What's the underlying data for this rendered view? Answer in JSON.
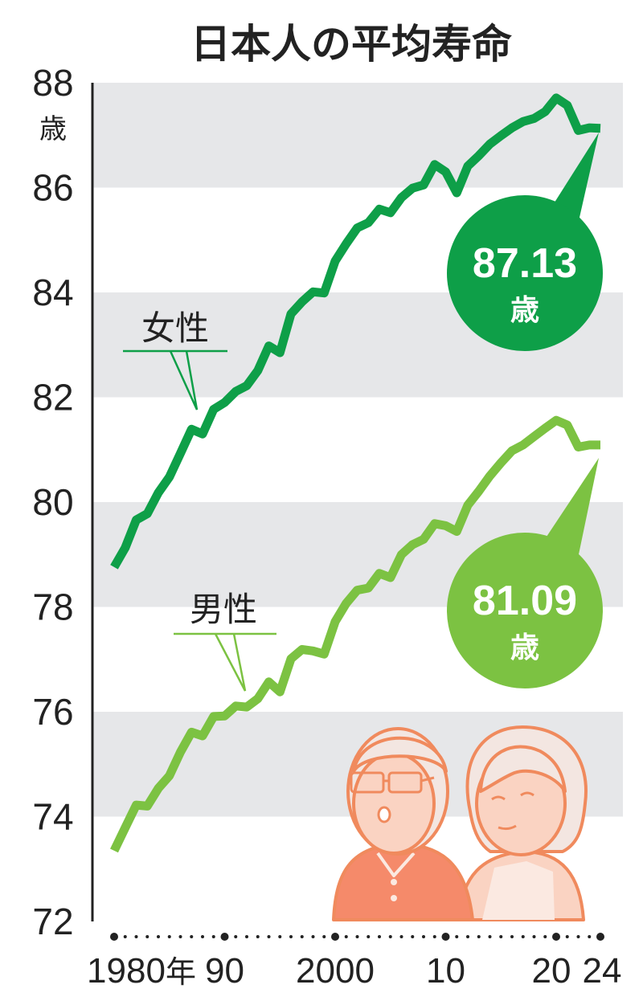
{
  "title": "日本人の平均寿命",
  "colors": {
    "female": "#0e9f48",
    "male": "#7cc242",
    "band": "#e6e7e9",
    "illustration": "#f08a5d",
    "skin": "#fad3c2",
    "shirt": "#f58a6a",
    "hair": "#f3e6e1"
  },
  "chart_data": {
    "type": "line",
    "title": "日本人の平均寿命",
    "yunit": "歳",
    "ylim": [
      72,
      88
    ],
    "yticks": [
      "72",
      "74",
      "76",
      "78",
      "80",
      "82",
      "84",
      "86",
      "88"
    ],
    "xlim": [
      1980,
      2024
    ],
    "xtick_labels": [
      {
        "x": 1980,
        "label": "1980年"
      },
      {
        "x": 1990,
        "label": "90"
      },
      {
        "x": 2000,
        "label": "2000"
      },
      {
        "x": 2010,
        "label": "10"
      },
      {
        "x": 2020,
        "label": "20"
      },
      {
        "x": 2024,
        "label": "24"
      }
    ],
    "x": [
      1980,
      1981,
      1982,
      1983,
      1984,
      1985,
      1986,
      1987,
      1988,
      1989,
      1990,
      1991,
      1992,
      1993,
      1994,
      1995,
      1996,
      1997,
      1998,
      1999,
      2000,
      2001,
      2002,
      2003,
      2004,
      2005,
      2006,
      2007,
      2008,
      2009,
      2010,
      2011,
      2012,
      2013,
      2014,
      2015,
      2016,
      2017,
      2018,
      2019,
      2020,
      2021,
      2022,
      2023,
      2024
    ],
    "series": [
      {
        "name": "女性",
        "color_key": "female",
        "values": [
          78.76,
          79.13,
          79.66,
          79.78,
          80.18,
          80.48,
          80.93,
          81.39,
          81.3,
          81.77,
          81.9,
          82.11,
          82.22,
          82.51,
          82.98,
          82.85,
          83.59,
          83.82,
          84.01,
          83.99,
          84.6,
          84.93,
          85.23,
          85.33,
          85.59,
          85.52,
          85.81,
          85.99,
          86.05,
          86.44,
          86.3,
          85.9,
          86.41,
          86.61,
          86.83,
          86.99,
          87.14,
          87.26,
          87.32,
          87.45,
          87.71,
          87.57,
          87.09,
          87.14,
          87.13
        ]
      },
      {
        "name": "男性",
        "color_key": "male",
        "values": [
          73.35,
          73.79,
          74.22,
          74.2,
          74.54,
          74.78,
          75.23,
          75.61,
          75.54,
          75.91,
          75.92,
          76.11,
          76.09,
          76.25,
          76.57,
          76.38,
          77.01,
          77.19,
          77.16,
          77.1,
          77.72,
          78.07,
          78.32,
          78.36,
          78.64,
          78.56,
          79.0,
          79.19,
          79.29,
          79.59,
          79.55,
          79.44,
          79.94,
          80.21,
          80.5,
          80.75,
          80.98,
          81.09,
          81.25,
          81.41,
          81.56,
          81.47,
          81.05,
          81.09,
          81.09
        ]
      }
    ],
    "callouts": [
      {
        "series": "女性",
        "value": "87.13",
        "unit": "歳"
      },
      {
        "series": "男性",
        "value": "81.09",
        "unit": "歳"
      }
    ],
    "grid": "alternating horizontal bands"
  }
}
